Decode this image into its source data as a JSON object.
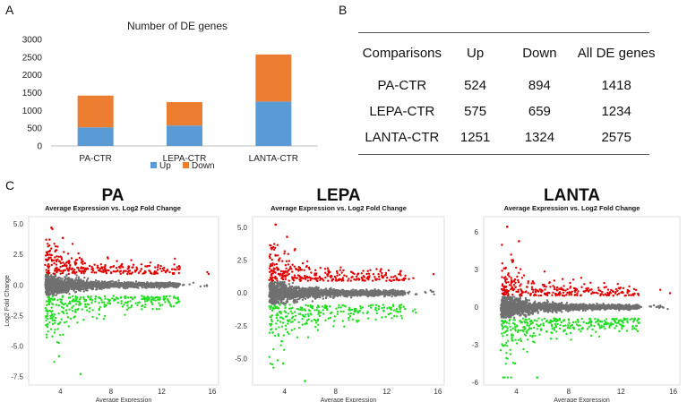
{
  "panel_labels": {
    "a": "A",
    "b": "B",
    "c": "C"
  },
  "colors": {
    "up": "#5b9bd5",
    "down": "#ed7d31",
    "grid": "#d9d9d9",
    "ma_up": "#e00000",
    "ma_down": "#22dd22",
    "ma_ns": "#707070"
  },
  "chart_data": [
    {
      "type": "bar",
      "stacked": true,
      "title": "Number of DE genes",
      "categories": [
        "PA-CTR",
        "LEPA-CTR",
        "LANTA-CTR"
      ],
      "series": [
        {
          "name": "Up",
          "values": [
            524,
            575,
            1251
          ]
        },
        {
          "name": "Down",
          "values": [
            894,
            659,
            1324
          ]
        }
      ],
      "ylim": [
        0,
        3000
      ],
      "yticks": [
        0,
        500,
        1000,
        1500,
        2000,
        2500,
        3000
      ],
      "legend": "bottom",
      "grid": false
    },
    {
      "type": "scatter",
      "panel": "PA",
      "title": "PA",
      "subtitle": "Average Expression vs. Log2 Fold Change",
      "xlabel": "Average Expression",
      "ylabel": "Log2 Fold Change",
      "xlim": [
        1.5,
        16.5
      ],
      "ylim": [
        -8.2,
        5.6
      ],
      "xticks": [
        4,
        8,
        12,
        16
      ],
      "yticks": [
        5.0,
        2.5,
        0.0,
        -2.5,
        -5.0,
        -7.5
      ],
      "ytick_labels": [
        "5.0",
        "2.5",
        "0.0",
        "-2.5",
        "-5.0",
        "-7.5"
      ],
      "y_range_up_max": 4.7,
      "y_range_down_min": -7.3
    },
    {
      "type": "scatter",
      "panel": "LEPA",
      "title": "LEPA",
      "subtitle": "Average Expression vs. Log2 Fold Change",
      "xlabel": "Average Expression",
      "ylabel": "",
      "xlim": [
        1.5,
        16.5
      ],
      "ylim": [
        -7.0,
        5.8
      ],
      "xticks": [
        4,
        8,
        12,
        16
      ],
      "yticks": [
        5.0,
        2.5,
        0.0,
        -2.5,
        -5.0
      ],
      "ytick_labels": [
        "5.0",
        "2.5",
        "0.0",
        "-2.5",
        "-5.0"
      ],
      "y_range_up_max": 5.2,
      "y_range_down_min": -6.7
    },
    {
      "type": "scatter",
      "panel": "LANTA",
      "title": "LANTA",
      "subtitle": "Average Expression vs. Log2 Fold Change",
      "xlabel": "Average Expression",
      "ylabel": "",
      "xlim": [
        1.5,
        16.5
      ],
      "ylim": [
        -6.2,
        7.2
      ],
      "xticks": [
        4,
        8,
        12,
        16
      ],
      "yticks": [
        6,
        3,
        0,
        -3,
        -6
      ],
      "ytick_labels": [
        "6",
        "3",
        "0",
        "-3",
        "-6"
      ],
      "y_range_up_max": 6.4,
      "y_range_down_min": -5.6
    }
  ],
  "table": {
    "headers": [
      "Comparisons",
      "Up",
      "Down",
      "All DE genes"
    ],
    "rows": [
      [
        "PA-CTR",
        "524",
        "894",
        "1418"
      ],
      [
        "LEPA-CTR",
        "575",
        "659",
        "1234"
      ],
      [
        "LANTA-CTR",
        "1251",
        "1324",
        "2575"
      ]
    ]
  }
}
